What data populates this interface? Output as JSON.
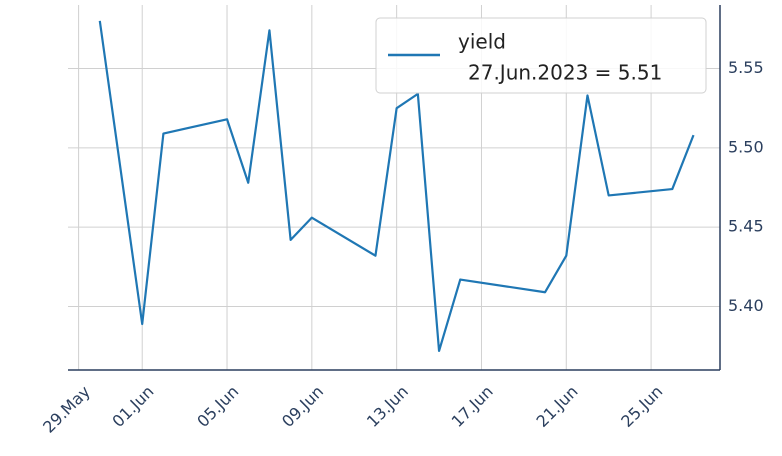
{
  "chart_data": {
    "type": "line",
    "x": [
      "2023-05-30",
      "2023-06-01",
      "2023-06-02",
      "2023-06-05",
      "2023-06-06",
      "2023-06-07",
      "2023-06-08",
      "2023-06-09",
      "2023-06-12",
      "2023-06-13",
      "2023-06-14",
      "2023-06-15",
      "2023-06-16",
      "2023-06-20",
      "2023-06-21",
      "2023-06-22",
      "2023-06-23",
      "2023-06-26",
      "2023-06-27"
    ],
    "series": [
      {
        "name": "yield",
        "color": "#1f77b4",
        "values": [
          5.58,
          5.389,
          5.509,
          5.518,
          5.478,
          5.574,
          5.442,
          5.456,
          5.432,
          5.525,
          5.534,
          5.372,
          5.417,
          5.409,
          5.432,
          5.533,
          5.47,
          5.474,
          5.508
        ]
      }
    ],
    "legend_note": "27.Jun.2023 = 5.51",
    "legend": "upper right",
    "grid": true,
    "xlim": [
      "2023-05-28T12:00Z",
      "2023-06-28T06:00Z"
    ],
    "xticks": [
      {
        "value": "2023-05-29",
        "label": "29.May"
      },
      {
        "value": "2023-06-01",
        "label": "01.Jun"
      },
      {
        "value": "2023-06-05",
        "label": "05.Jun"
      },
      {
        "value": "2023-06-09",
        "label": "09.Jun"
      },
      {
        "value": "2023-06-13",
        "label": "13.Jun"
      },
      {
        "value": "2023-06-17",
        "label": "17.Jun"
      },
      {
        "value": "2023-06-21",
        "label": "21.Jun"
      },
      {
        "value": "2023-06-25",
        "label": "25.Jun"
      }
    ],
    "ylim": [
      5.36,
      5.59
    ],
    "yticks": [
      {
        "value": 5.4,
        "label": "5.40"
      },
      5.45,
      {
        "value": 5.5,
        "label": "5.50"
      },
      5.55
    ]
  }
}
